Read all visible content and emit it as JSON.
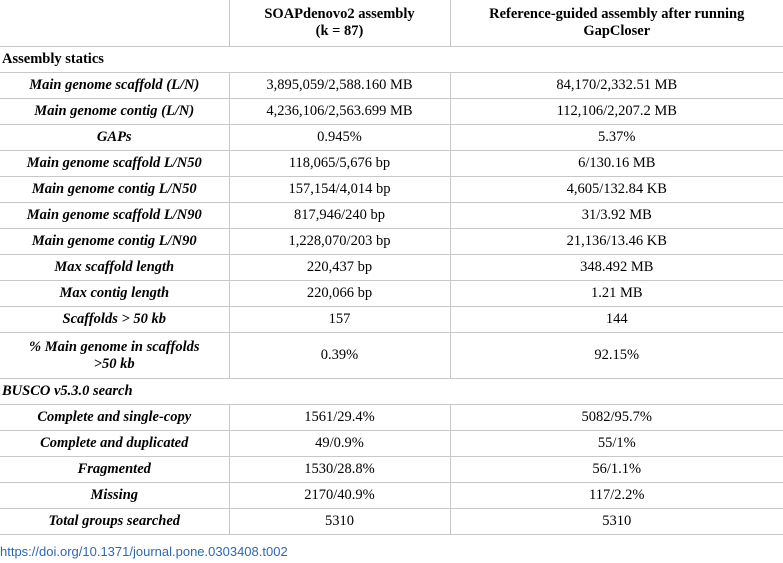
{
  "header": {
    "col1": "",
    "col2_line1": "SOAPdenovo2 assembly",
    "col2_line2": "(k = 87)",
    "col3_line1": "Reference-guided assembly after running",
    "col3_line2": "GapCloser"
  },
  "sections": {
    "assembly": "Assembly statics",
    "busco": "BUSCO v5.3.0 search"
  },
  "assembly_rows": [
    {
      "label": "Main genome scaffold (L/N)",
      "soap": "3,895,059/2,588.160 MB",
      "ref": "84,170/2,332.51 MB"
    },
    {
      "label": "Main genome contig (L/N)",
      "soap": "4,236,106/2,563.699 MB",
      "ref": "112,106/2,207.2 MB"
    },
    {
      "label": "GAPs",
      "soap": "0.945%",
      "ref": "5.37%"
    },
    {
      "label": "Main genome scaffold L/N50",
      "soap": "118,065/5,676 bp",
      "ref": "6/130.16 MB"
    },
    {
      "label": "Main genome contig L/N50",
      "soap": "157,154/4,014 bp",
      "ref": "4,605/132.84 KB"
    },
    {
      "label": "Main genome scaffold L/N90",
      "soap": "817,946/240 bp",
      "ref": "31/3.92 MB"
    },
    {
      "label": "Main genome contig L/N90",
      "soap": "1,228,070/203 bp",
      "ref": "21,136/13.46 KB"
    },
    {
      "label": "Max scaffold length",
      "soap": "220,437 bp",
      "ref": "348.492 MB"
    },
    {
      "label": "Max contig length",
      "soap": "220,066 bp",
      "ref": "1.21 MB"
    },
    {
      "label": "Scaffolds > 50 kb",
      "soap": "157",
      "ref": "144"
    }
  ],
  "tall_row": {
    "label_line1": "% Main genome in scaffolds",
    "label_line2": ">50 kb",
    "soap": "0.39%",
    "ref": "92.15%"
  },
  "busco_rows": [
    {
      "label": "Complete and single-copy",
      "soap": "1561/29.4%",
      "ref": "5082/95.7%"
    },
    {
      "label": "Complete and duplicated",
      "soap": "49/0.9%",
      "ref": "55/1%"
    },
    {
      "label": "Fragmented",
      "soap": "1530/28.8%",
      "ref": "56/1.1%"
    },
    {
      "label": "Missing",
      "soap": "2170/40.9%",
      "ref": "117/2.2%"
    },
    {
      "label": "Total groups searched",
      "soap": "5310",
      "ref": "5310"
    }
  ],
  "doi": "https://doi.org/10.1371/journal.pone.0303408.t002"
}
